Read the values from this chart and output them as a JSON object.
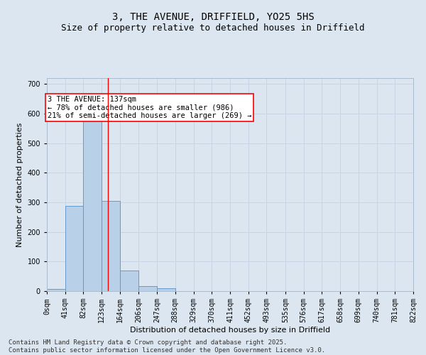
{
  "title": "3, THE AVENUE, DRIFFIELD, YO25 5HS",
  "subtitle": "Size of property relative to detached houses in Driffield",
  "xlabel": "Distribution of detached houses by size in Driffield",
  "ylabel": "Number of detached properties",
  "bar_values": [
    8,
    289,
    577,
    304,
    70,
    16,
    10,
    0,
    0,
    0,
    0,
    0,
    0,
    0,
    0,
    0,
    0,
    0,
    0,
    0
  ],
  "bin_edges": [
    0,
    41,
    82,
    123,
    164,
    206,
    247,
    288,
    329,
    370,
    411,
    452,
    493,
    535,
    576,
    617,
    658,
    699,
    740,
    781,
    822
  ],
  "tick_labels": [
    "0sqm",
    "41sqm",
    "82sqm",
    "123sqm",
    "164sqm",
    "206sqm",
    "247sqm",
    "288sqm",
    "329sqm",
    "370sqm",
    "411sqm",
    "452sqm",
    "493sqm",
    "535sqm",
    "576sqm",
    "617sqm",
    "658sqm",
    "699sqm",
    "740sqm",
    "781sqm",
    "822sqm"
  ],
  "bar_color": "#b8d0e8",
  "bar_edge_color": "#6699cc",
  "grid_color": "#c8d4e4",
  "background_color": "#dce6f0",
  "vline_x": 137,
  "vline_color": "red",
  "annotation_text": "3 THE AVENUE: 137sqm\n← 78% of detached houses are smaller (986)\n21% of semi-detached houses are larger (269) →",
  "annotation_box_color": "white",
  "annotation_box_edgecolor": "red",
  "ylim": [
    0,
    720
  ],
  "yticks": [
    0,
    100,
    200,
    300,
    400,
    500,
    600,
    700
  ],
  "footer_text": "Contains HM Land Registry data © Crown copyright and database right 2025.\nContains public sector information licensed under the Open Government Licence v3.0.",
  "title_fontsize": 10,
  "subtitle_fontsize": 9,
  "axis_label_fontsize": 8,
  "tick_fontsize": 7,
  "annotation_fontsize": 7.5,
  "footer_fontsize": 6.5
}
